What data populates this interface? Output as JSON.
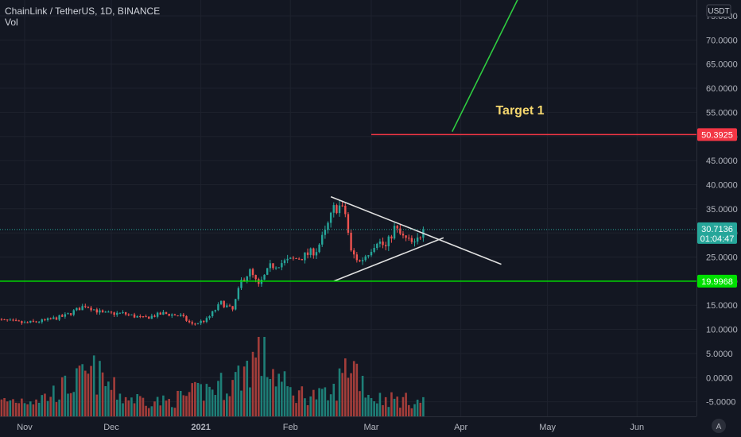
{
  "header": {
    "symbol_line": "ChainLink / TetherUS, 1D, BINANCE",
    "vol_label": "Vol"
  },
  "chart_data": {
    "type": "candlestick",
    "currency_label": "USDT",
    "y_ticks": [
      75.0,
      70.0,
      65.0,
      60.0,
      55.0,
      50.0,
      45.0,
      40.0,
      35.0,
      30.0,
      25.0,
      20.0,
      15.0,
      10.0,
      5.0,
      0.0,
      -5.0
    ],
    "y_tick_labels": [
      "75.0000",
      "70.0000",
      "65.0000",
      "60.0000",
      "55.0000",
      "50.0000",
      "45.0000",
      "40.0000",
      "35.0000",
      "30.0000",
      "25.0000",
      "20.0000",
      "15.0000",
      "10.0000",
      "5.0000",
      "0.0000",
      "-5.0000"
    ],
    "ylim": [
      -8.0,
      79.0
    ],
    "x_labels": [
      {
        "label": "Nov",
        "date": "2020-11-01"
      },
      {
        "label": "Dec",
        "date": "2020-12-01"
      },
      {
        "label": "2021",
        "date": "2021-01-01"
      },
      {
        "label": "Feb",
        "date": "2021-02-01"
      },
      {
        "label": "Mar",
        "date": "2021-03-01"
      },
      {
        "label": "Apr",
        "date": "2021-04-01"
      },
      {
        "label": "May",
        "date": "2021-05-01"
      },
      {
        "label": "Jun",
        "date": "2021-06-01"
      }
    ],
    "current_price": {
      "value": 30.7136,
      "label": "30.7136",
      "countdown": "01:04:47"
    },
    "levels": [
      {
        "value": 50.3925,
        "label": "50.3925",
        "color": "#f23645",
        "start_date": "2021-03-01"
      },
      {
        "value": 19.9968,
        "label": "19.9968",
        "color": "#00e000",
        "start_date": "2020-10-22"
      }
    ],
    "target_label": {
      "text": "Target 1",
      "color": "#f5d76e"
    },
    "colors": {
      "up": "#26a69a",
      "down": "#ef5350",
      "up_vol": "#1e7f77",
      "down_vol": "#a33d3a"
    },
    "price_points": [
      [
        "2020-10-22",
        12.0
      ],
      [
        "2020-11-01",
        11.3
      ],
      [
        "2020-11-08",
        11.8
      ],
      [
        "2020-11-15",
        12.8
      ],
      [
        "2020-11-22",
        15.0
      ],
      [
        "2020-11-28",
        13.3
      ],
      [
        "2020-12-05",
        13.3
      ],
      [
        "2020-12-12",
        12.3
      ],
      [
        "2020-12-19",
        13.3
      ],
      [
        "2020-12-25",
        12.8
      ],
      [
        "2020-12-29",
        11.0
      ],
      [
        "2021-01-03",
        12.0
      ],
      [
        "2021-01-08",
        15.5
      ],
      [
        "2021-01-12",
        14.0
      ],
      [
        "2021-01-15",
        20.0
      ],
      [
        "2021-01-18",
        22.0
      ],
      [
        "2021-01-21",
        19.0
      ],
      [
        "2021-01-25",
        23.0
      ],
      [
        "2021-01-30",
        24.0
      ],
      [
        "2021-02-05",
        25.0
      ],
      [
        "2021-02-10",
        26.5
      ],
      [
        "2021-02-13",
        30.0
      ],
      [
        "2021-02-16",
        35.0
      ],
      [
        "2021-02-18",
        35.5
      ],
      [
        "2021-02-20",
        34.0
      ],
      [
        "2021-02-22",
        26.0
      ],
      [
        "2021-02-25",
        24.0
      ],
      [
        "2021-02-28",
        26.0
      ],
      [
        "2021-03-03",
        28.5
      ],
      [
        "2021-03-06",
        27.0
      ],
      [
        "2021-03-09",
        31.0
      ],
      [
        "2021-03-12",
        29.0
      ],
      [
        "2021-03-16",
        27.5
      ],
      [
        "2021-03-19",
        30.7
      ]
    ],
    "volume_scale_points": [
      [
        "2020-10-22",
        3
      ],
      [
        "2020-11-08",
        4
      ],
      [
        "2020-11-25",
        9
      ],
      [
        "2020-12-05",
        4
      ],
      [
        "2020-12-20",
        3
      ],
      [
        "2021-01-05",
        6
      ],
      [
        "2021-01-12",
        7
      ],
      [
        "2021-01-21",
        13
      ],
      [
        "2021-02-01",
        5
      ],
      [
        "2021-02-15",
        4
      ],
      [
        "2021-02-22",
        12
      ],
      [
        "2021-03-01",
        4
      ],
      [
        "2021-03-19",
        3
      ]
    ],
    "trend_lines": [
      {
        "color": "#e0e0e0",
        "from": [
          "2021-02-15",
          37.5
        ],
        "to": [
          "2021-04-15",
          23.5
        ]
      },
      {
        "color": "#e0e0e0",
        "from": [
          "2021-02-16",
          20.0
        ],
        "to": [
          "2021-03-26",
          29.0
        ]
      },
      {
        "color": "#2ecc40",
        "from": [
          "2021-03-29",
          51.0
        ],
        "to": [
          "2021-04-22",
          80.0
        ]
      }
    ]
  }
}
